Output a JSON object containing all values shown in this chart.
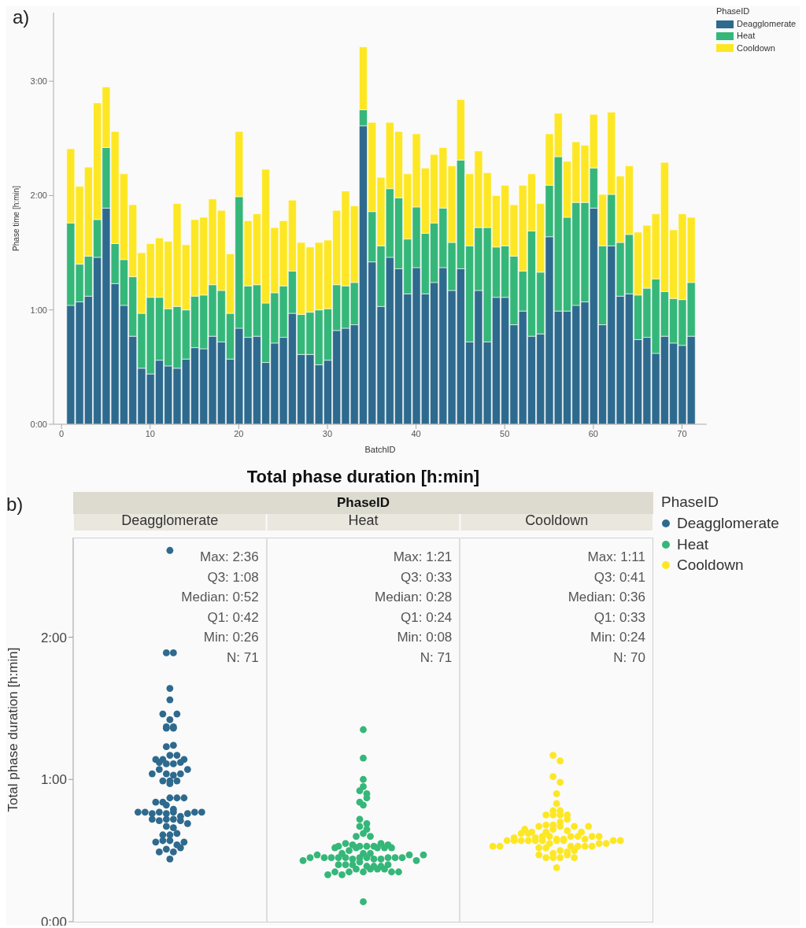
{
  "chart_data": [
    {
      "type": "bar",
      "stacked": true,
      "xlabel": "BatchID",
      "ylabel": "Phase time [h:min]",
      "legend_title": "PhaseID",
      "legend": "top right",
      "annotations": [
        "a)"
      ],
      "xlim": [
        -0.9,
        72.8
      ],
      "xticks": [
        0,
        10,
        20,
        30,
        40,
        50,
        60,
        70
      ],
      "ylim": [
        0,
        3.6
      ],
      "yticks": [
        {
          "value": 0,
          "label": "0:00"
        },
        {
          "value": 1,
          "label": "1:00"
        },
        {
          "value": 2,
          "label": "2:00"
        },
        {
          "value": 3,
          "label": "3:00"
        }
      ],
      "x": [
        1,
        2,
        3,
        4,
        5,
        6,
        7,
        8,
        9,
        10,
        11,
        12,
        13,
        14,
        15,
        16,
        17,
        18,
        19,
        20,
        21,
        22,
        23,
        24,
        25,
        26,
        27,
        28,
        29,
        30,
        31,
        32,
        33,
        34,
        35,
        36,
        37,
        38,
        39,
        40,
        41,
        42,
        43,
        44,
        45,
        46,
        47,
        48,
        49,
        50,
        51,
        52,
        53,
        54,
        55,
        56,
        57,
        58,
        59,
        60,
        61,
        62,
        63,
        64,
        65,
        66,
        67,
        68,
        69,
        70,
        71
      ],
      "series": [
        {
          "name": "Deagglomerate",
          "color": "#2e6a8e",
          "values": [
            1.04,
            1.07,
            1.12,
            1.46,
            1.89,
            1.23,
            1.04,
            0.77,
            0.49,
            0.44,
            0.56,
            0.51,
            0.49,
            0.57,
            0.67,
            0.66,
            0.77,
            0.72,
            0.57,
            0.84,
            0.76,
            0.77,
            0.54,
            0.71,
            0.76,
            0.97,
            0.61,
            0.61,
            0.52,
            0.56,
            0.82,
            0.84,
            0.87,
            2.61,
            1.42,
            1.03,
            1.46,
            1.36,
            1.14,
            1.37,
            1.14,
            1.24,
            1.37,
            1.17,
            1.36,
            0.72,
            1.17,
            0.72,
            1.11,
            1.11,
            0.87,
            0.99,
            0.77,
            0.79,
            1.64,
            0.99,
            0.99,
            1.04,
            1.07,
            1.89,
            0.87,
            1.56,
            1.12,
            1.14,
            0.74,
            0.76,
            0.62,
            0.77,
            0.71,
            0.69,
            0.77
          ]
        },
        {
          "name": "Heat",
          "color": "#35b779",
          "values": [
            0.72,
            0.33,
            0.35,
            0.33,
            0.53,
            0.35,
            0.4,
            0.52,
            0.48,
            0.67,
            0.55,
            0.5,
            0.54,
            0.43,
            0.45,
            0.47,
            0.45,
            0.45,
            0.4,
            1.15,
            0.45,
            0.45,
            0.52,
            0.44,
            0.45,
            0.37,
            0.35,
            0.37,
            0.48,
            0.45,
            0.4,
            0.37,
            0.37,
            0.14,
            0.44,
            0.53,
            0.6,
            0.62,
            0.48,
            0.53,
            0.53,
            0.52,
            0.52,
            0.42,
            0.95,
            0.84,
            0.55,
            1.0,
            0.44,
            0.45,
            0.6,
            0.35,
            0.92,
            0.54,
            0.45,
            1.35,
            0.82,
            0.9,
            0.87,
            0.35,
            0.69,
            0.45,
            0.47,
            0.52,
            0.39,
            0.43,
            0.65,
            0.39,
            0.39,
            0.4,
            0.47
          ]
        },
        {
          "name": "Cooldown",
          "color": "#fde725",
          "values": [
            0.65,
            0.68,
            0.78,
            1.02,
            0.53,
            0.98,
            0.75,
            0.63,
            0.53,
            0.47,
            0.52,
            0.59,
            0.9,
            0.57,
            0.67,
            0.68,
            0.75,
            0.7,
            0.52,
            0.57,
            0.57,
            0.62,
            1.17,
            0.57,
            0.57,
            0.62,
            0.63,
            0.57,
            0.59,
            0.6,
            0.65,
            0.83,
            0.67,
            0.55,
            0.78,
            0.6,
            0.58,
            0.58,
            0.57,
            0.64,
            0.57,
            0.6,
            0.53,
            0.67,
            0.53,
            0.63,
            0.67,
            0.48,
            0.45,
            0.53,
            0.45,
            0.75,
            0.5,
            0.6,
            0.45,
            0.38,
            0.49,
            0.53,
            0.5,
            0.47,
            0.45,
            0.72,
            0.58,
            0.6,
            0.55,
            0.55,
            0.57,
            1.13,
            0.6,
            0.75,
            0.57
          ]
        }
      ]
    },
    {
      "type": "scatter",
      "title": "Total phase duration [h:min]",
      "xlabel": "PhaseID",
      "ylabel": "Total phase duration [h:min]",
      "legend_title": "PhaseID",
      "legend": "top right",
      "marker": "circle",
      "categories": [
        "Deagglomerate",
        "Heat",
        "Cooldown"
      ],
      "ylim": [
        0,
        2.7
      ],
      "yticks": [
        {
          "value": 0,
          "label": "0:00"
        },
        {
          "value": 1,
          "label": "1:00"
        },
        {
          "value": 2,
          "label": "2:00"
        }
      ],
      "annotations": [
        "b)",
        "Max: 2:36",
        "Q3: 1:08",
        "Median: 0:52",
        "Q1: 0:42",
        "Min: 0:26",
        "N: 71",
        "Max: 1:21",
        "Q3: 0:33",
        "Median: 0:28",
        "Q1: 0:24",
        "Min: 0:08",
        "N: 71",
        "Max: 1:11",
        "Q3: 0:41",
        "Median: 0:36",
        "Q1: 0:33",
        "Min: 0:24",
        "N: 70"
      ],
      "series": [
        {
          "name": "Deagglomerate",
          "color": "#2e6a8e",
          "x": [
            "Deagglomerate",
            "Deagglomerate",
            "Deagglomerate",
            "Deagglomerate",
            "Deagglomerate",
            "Deagglomerate",
            "Deagglomerate",
            "Deagglomerate",
            "Deagglomerate",
            "Deagglomerate",
            "Deagglomerate",
            "Deagglomerate",
            "Deagglomerate",
            "Deagglomerate",
            "Deagglomerate",
            "Deagglomerate",
            "Deagglomerate",
            "Deagglomerate",
            "Deagglomerate",
            "Deagglomerate",
            "Deagglomerate",
            "Deagglomerate",
            "Deagglomerate",
            "Deagglomerate",
            "Deagglomerate",
            "Deagglomerate",
            "Deagglomerate",
            "Deagglomerate",
            "Deagglomerate",
            "Deagglomerate",
            "Deagglomerate",
            "Deagglomerate",
            "Deagglomerate",
            "Deagglomerate",
            "Deagglomerate",
            "Deagglomerate",
            "Deagglomerate",
            "Deagglomerate",
            "Deagglomerate",
            "Deagglomerate",
            "Deagglomerate",
            "Deagglomerate",
            "Deagglomerate",
            "Deagglomerate",
            "Deagglomerate",
            "Deagglomerate",
            "Deagglomerate",
            "Deagglomerate",
            "Deagglomerate",
            "Deagglomerate",
            "Deagglomerate",
            "Deagglomerate",
            "Deagglomerate",
            "Deagglomerate",
            "Deagglomerate",
            "Deagglomerate",
            "Deagglomerate",
            "Deagglomerate",
            "Deagglomerate",
            "Deagglomerate",
            "Deagglomerate",
            "Deagglomerate",
            "Deagglomerate",
            "Deagglomerate",
            "Deagglomerate",
            "Deagglomerate",
            "Deagglomerate",
            "Deagglomerate",
            "Deagglomerate",
            "Deagglomerate",
            "Deagglomerate"
          ],
          "values": [
            1.04,
            1.07,
            1.12,
            1.46,
            1.89,
            1.23,
            1.04,
            0.77,
            0.49,
            0.44,
            0.56,
            0.51,
            0.49,
            0.57,
            0.67,
            0.66,
            0.77,
            0.72,
            0.57,
            0.84,
            0.76,
            0.77,
            0.54,
            0.71,
            0.76,
            0.97,
            0.61,
            0.61,
            0.52,
            0.56,
            0.82,
            0.84,
            0.87,
            2.61,
            1.42,
            1.03,
            1.46,
            1.36,
            1.14,
            1.37,
            1.14,
            1.24,
            1.37,
            1.17,
            1.36,
            0.72,
            1.17,
            0.72,
            1.11,
            1.11,
            0.87,
            0.99,
            0.77,
            0.79,
            1.64,
            0.99,
            0.99,
            1.04,
            1.07,
            1.89,
            0.87,
            1.56,
            1.12,
            1.14,
            0.74,
            0.76,
            0.62,
            0.77,
            0.71,
            0.69,
            0.77
          ]
        },
        {
          "name": "Heat",
          "color": "#35b779",
          "x": [
            "Heat",
            "Heat",
            "Heat",
            "Heat",
            "Heat",
            "Heat",
            "Heat",
            "Heat",
            "Heat",
            "Heat",
            "Heat",
            "Heat",
            "Heat",
            "Heat",
            "Heat",
            "Heat",
            "Heat",
            "Heat",
            "Heat",
            "Heat",
            "Heat",
            "Heat",
            "Heat",
            "Heat",
            "Heat",
            "Heat",
            "Heat",
            "Heat",
            "Heat",
            "Heat",
            "Heat",
            "Heat",
            "Heat",
            "Heat",
            "Heat",
            "Heat",
            "Heat",
            "Heat",
            "Heat",
            "Heat",
            "Heat",
            "Heat",
            "Heat",
            "Heat",
            "Heat",
            "Heat",
            "Heat",
            "Heat",
            "Heat",
            "Heat",
            "Heat",
            "Heat",
            "Heat",
            "Heat",
            "Heat",
            "Heat",
            "Heat",
            "Heat",
            "Heat",
            "Heat",
            "Heat",
            "Heat",
            "Heat",
            "Heat",
            "Heat",
            "Heat",
            "Heat",
            "Heat",
            "Heat",
            "Heat",
            "Heat"
          ],
          "values": [
            0.72,
            0.33,
            0.35,
            0.33,
            0.53,
            0.35,
            0.4,
            0.52,
            0.48,
            0.67,
            0.55,
            0.5,
            0.54,
            0.43,
            0.45,
            0.47,
            0.45,
            0.45,
            0.4,
            1.15,
            0.45,
            0.45,
            0.52,
            0.44,
            0.45,
            0.37,
            0.35,
            0.37,
            0.48,
            0.45,
            0.4,
            0.37,
            0.37,
            0.14,
            0.44,
            0.53,
            0.6,
            0.62,
            0.48,
            0.53,
            0.53,
            0.52,
            0.52,
            0.42,
            0.95,
            0.84,
            0.55,
            1.0,
            0.44,
            0.45,
            0.6,
            0.35,
            0.92,
            0.54,
            0.45,
            1.35,
            0.82,
            0.9,
            0.87,
            0.35,
            0.69,
            0.45,
            0.47,
            0.52,
            0.39,
            0.43,
            0.65,
            0.39,
            0.39,
            0.4,
            0.47
          ]
        },
        {
          "name": "Cooldown",
          "color": "#fde725",
          "x": [
            "Cooldown",
            "Cooldown",
            "Cooldown",
            "Cooldown",
            "Cooldown",
            "Cooldown",
            "Cooldown",
            "Cooldown",
            "Cooldown",
            "Cooldown",
            "Cooldown",
            "Cooldown",
            "Cooldown",
            "Cooldown",
            "Cooldown",
            "Cooldown",
            "Cooldown",
            "Cooldown",
            "Cooldown",
            "Cooldown",
            "Cooldown",
            "Cooldown",
            "Cooldown",
            "Cooldown",
            "Cooldown",
            "Cooldown",
            "Cooldown",
            "Cooldown",
            "Cooldown",
            "Cooldown",
            "Cooldown",
            "Cooldown",
            "Cooldown",
            "Cooldown",
            "Cooldown",
            "Cooldown",
            "Cooldown",
            "Cooldown",
            "Cooldown",
            "Cooldown",
            "Cooldown",
            "Cooldown",
            "Cooldown",
            "Cooldown",
            "Cooldown",
            "Cooldown",
            "Cooldown",
            "Cooldown",
            "Cooldown",
            "Cooldown",
            "Cooldown",
            "Cooldown",
            "Cooldown",
            "Cooldown",
            "Cooldown",
            "Cooldown",
            "Cooldown",
            "Cooldown",
            "Cooldown",
            "Cooldown",
            "Cooldown",
            "Cooldown",
            "Cooldown",
            "Cooldown",
            "Cooldown",
            "Cooldown",
            "Cooldown",
            "Cooldown",
            "Cooldown",
            "Cooldown",
            "Cooldown"
          ],
          "values": [
            0.65,
            0.68,
            0.78,
            1.02,
            0.53,
            0.98,
            0.75,
            0.63,
            0.53,
            0.47,
            0.52,
            0.59,
            0.9,
            0.57,
            0.67,
            0.68,
            0.75,
            0.7,
            0.52,
            0.57,
            0.57,
            0.62,
            1.17,
            0.57,
            0.57,
            0.62,
            0.63,
            0.57,
            0.59,
            0.6,
            0.65,
            0.83,
            0.67,
            0.55,
            0.78,
            0.6,
            0.58,
            0.58,
            0.57,
            0.64,
            0.57,
            0.6,
            0.53,
            0.67,
            0.53,
            0.63,
            0.67,
            0.48,
            0.45,
            0.53,
            0.45,
            0.75,
            0.5,
            0.6,
            0.45,
            0.38,
            0.49,
            0.53,
            0.5,
            0.47,
            0.45,
            0.72,
            0.58,
            0.6,
            0.55,
            0.55,
            0.57,
            1.13,
            0.6,
            0.75,
            0.57
          ]
        }
      ]
    }
  ]
}
